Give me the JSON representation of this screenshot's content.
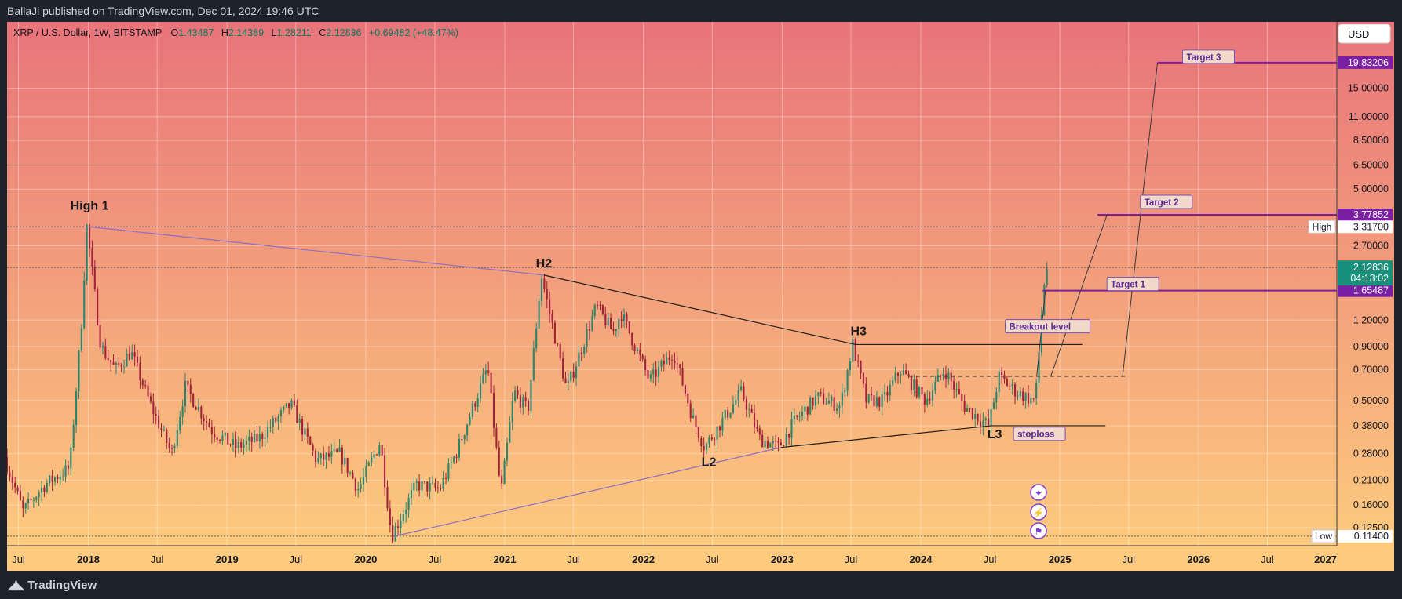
{
  "header": {
    "published_line": "BallaJi published on TradingView.com, Dec 01, 2024 19:46 UTC"
  },
  "footer": {
    "logo_text": "TradingView",
    "logo_icon": "tradingview-logo-icon"
  },
  "symbol_info": {
    "name": "XRP / U.S. Dollar, 1W, BITSTAMP",
    "o_label": "O",
    "o_value": "1.43487",
    "h_label": "H",
    "h_value": "2.14389",
    "l_label": "L",
    "l_value": "1.28211",
    "c_label": "C",
    "c_value": "2.12836",
    "change": "+0.69482 (+48.47%)"
  },
  "currency_button": "USD",
  "colors": {
    "bg_top": "#e8747a",
    "bg_bottom": "#fdca7e",
    "up_candle": "#26866e",
    "down_candle": "#a3213d",
    "target_line": "#7a1fa2",
    "price_badge": "#17917b"
  },
  "chart_data": {
    "type": "candlestick",
    "symbol": "XRP / U.S. Dollar",
    "interval": "1W",
    "exchange": "BITSTAMP",
    "y_scale": "log",
    "ylim": [
      0.112,
      23.5
    ],
    "xlim": [
      "2017-06-01",
      "2026-12-31"
    ],
    "y_ticks": [
      "15.00000",
      "11.00000",
      "8.50000",
      "6.50000",
      "5.00000",
      "2.70000",
      "1.20000",
      "0.90000",
      "0.70000",
      "0.50000",
      "0.38000",
      "0.28000",
      "0.21000",
      "0.16000",
      "0.12500"
    ],
    "x_ticks": [
      {
        "label": "Jul",
        "date": "2017-07-01"
      },
      {
        "label": "2018",
        "date": "2018-01-01"
      },
      {
        "label": "Jul",
        "date": "2018-07-01"
      },
      {
        "label": "2019",
        "date": "2019-01-01"
      },
      {
        "label": "Jul",
        "date": "2019-07-01"
      },
      {
        "label": "2020",
        "date": "2020-01-01"
      },
      {
        "label": "Jul",
        "date": "2020-07-01"
      },
      {
        "label": "2021",
        "date": "2021-01-01"
      },
      {
        "label": "Jul",
        "date": "2021-07-01"
      },
      {
        "label": "2022",
        "date": "2022-01-01"
      },
      {
        "label": "Jul",
        "date": "2022-07-01"
      },
      {
        "label": "2023",
        "date": "2023-01-01"
      },
      {
        "label": "Jul",
        "date": "2023-07-01"
      },
      {
        "label": "2024",
        "date": "2024-01-01"
      },
      {
        "label": "Jul",
        "date": "2024-07-01"
      },
      {
        "label": "2025",
        "date": "2025-01-01"
      },
      {
        "label": "Jul",
        "date": "2025-07-01"
      },
      {
        "label": "2026",
        "date": "2026-01-01"
      },
      {
        "label": "Jul",
        "date": "2026-07-01"
      },
      {
        "label": "2027",
        "date": "2027-01-01"
      }
    ],
    "price_path": [
      [
        "2017-06-01",
        0.27
      ],
      [
        "2017-07-20",
        0.15
      ],
      [
        "2017-09-15",
        0.2
      ],
      [
        "2017-11-20",
        0.24
      ],
      [
        "2017-12-20",
        1.1
      ],
      [
        "2018-01-04",
        3.317
      ],
      [
        "2018-02-10",
        0.9
      ],
      [
        "2018-03-20",
        0.7
      ],
      [
        "2018-04-30",
        0.85
      ],
      [
        "2018-06-20",
        0.48
      ],
      [
        "2018-08-15",
        0.28
      ],
      [
        "2018-09-20",
        0.58
      ],
      [
        "2018-11-30",
        0.36
      ],
      [
        "2019-02-01",
        0.3
      ],
      [
        "2019-04-01",
        0.33
      ],
      [
        "2019-06-25",
        0.48
      ],
      [
        "2019-09-01",
        0.26
      ],
      [
        "2019-11-01",
        0.28
      ],
      [
        "2019-12-20",
        0.19
      ],
      [
        "2020-02-15",
        0.32
      ],
      [
        "2020-03-16",
        0.114
      ],
      [
        "2020-05-20",
        0.2
      ],
      [
        "2020-07-20",
        0.19
      ],
      [
        "2020-09-01",
        0.28
      ],
      [
        "2020-11-24",
        0.72
      ],
      [
        "2020-12-29",
        0.18
      ],
      [
        "2021-02-01",
        0.55
      ],
      [
        "2021-03-10",
        0.45
      ],
      [
        "2021-04-14",
        1.96
      ],
      [
        "2021-06-20",
        0.56
      ],
      [
        "2021-09-06",
        1.4
      ],
      [
        "2021-10-20",
        1.05
      ],
      [
        "2021-11-10",
        1.3
      ],
      [
        "2022-01-24",
        0.62
      ],
      [
        "2022-03-28",
        0.85
      ],
      [
        "2022-05-20",
        0.4
      ],
      [
        "2022-06-18",
        0.3
      ],
      [
        "2022-09-23",
        0.55
      ],
      [
        "2022-11-10",
        0.33
      ],
      [
        "2022-12-30",
        0.3
      ],
      [
        "2023-02-10",
        0.4
      ],
      [
        "2023-04-10",
        0.52
      ],
      [
        "2023-06-10",
        0.47
      ],
      [
        "2023-07-13",
        0.92
      ],
      [
        "2023-08-17",
        0.5
      ],
      [
        "2023-10-01",
        0.5
      ],
      [
        "2023-11-15",
        0.7
      ],
      [
        "2024-01-20",
        0.5
      ],
      [
        "2024-03-11",
        0.7
      ],
      [
        "2024-05-01",
        0.47
      ],
      [
        "2024-07-05",
        0.38
      ],
      [
        "2024-07-31",
        0.65
      ],
      [
        "2024-09-15",
        0.55
      ],
      [
        "2024-10-30",
        0.5
      ],
      [
        "2024-11-10",
        0.6
      ],
      [
        "2024-11-17",
        1.1
      ],
      [
        "2024-11-24",
        1.43
      ],
      [
        "2024-12-01",
        2.12836
      ]
    ],
    "last_price": "2.12836",
    "countdown": "04:13:02",
    "high_label": "High",
    "high_value": "3.31700",
    "low_label": "Low",
    "low_value": "0.11400",
    "pattern_labels": [
      {
        "text": "High 1",
        "date": "2018-01-04",
        "price": 3.317
      },
      {
        "text": "H2",
        "date": "2021-04-14",
        "price": 1.96
      },
      {
        "text": "H3",
        "date": "2023-07-13",
        "price": 0.92
      },
      {
        "text": "L2",
        "date": "2022-06-18",
        "price": 0.3
      },
      {
        "text": "L3",
        "date": "2024-07-05",
        "price": 0.38
      }
    ],
    "trendlines": [
      {
        "from": [
          "2018-01-04",
          3.317
        ],
        "to": [
          "2021-04-14",
          1.96
        ]
      },
      {
        "from": [
          "2021-04-14",
          1.96
        ],
        "to": [
          "2023-07-13",
          0.92
        ]
      },
      {
        "from": [
          "2020-03-16",
          0.114
        ],
        "to": [
          "2022-12-30",
          0.3
        ]
      },
      {
        "from": [
          "2022-12-30",
          0.3
        ],
        "to": [
          "2024-07-05",
          0.38
        ]
      }
    ],
    "levels": [
      {
        "name": "Breakout level",
        "price": 0.92,
        "from": "2023-07-13",
        "to": "2025-03-01"
      },
      {
        "name": "stoploss",
        "price": 0.38,
        "from": "2024-07-05",
        "to": "2025-05-01"
      }
    ],
    "dashed_level": {
      "price": 0.65,
      "from": "2023-12-01",
      "to": "2025-06-30"
    },
    "targets": [
      {
        "name": "Target 1",
        "value": "1.65487",
        "price": 1.65487,
        "from": "2024-11-17"
      },
      {
        "name": "Target 2",
        "value": "3.77852",
        "price": 3.77852,
        "from": "2025-04-10"
      },
      {
        "name": "Target 3",
        "value": "19.83206",
        "price": 19.83206,
        "from": "2025-09-15"
      }
    ],
    "projection_lines": [
      {
        "from": [
          "2024-12-08",
          0.65
        ],
        "to": [
          "2025-05-05",
          3.77852
        ]
      },
      {
        "from": [
          "2025-06-15",
          0.65
        ],
        "to": [
          "2025-09-15",
          19.83206
        ]
      },
      {
        "from": [
          "2024-11-01",
          0.65
        ],
        "to": [
          "2024-11-24",
          1.65487
        ]
      }
    ],
    "hline_dotted": [
      3.317,
      2.12836,
      0.114
    ]
  }
}
